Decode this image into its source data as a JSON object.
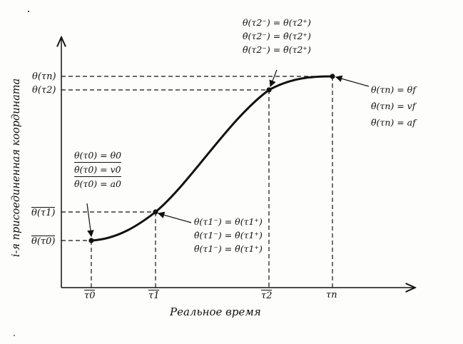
{
  "axes": {
    "x_title": "Реальное время",
    "y_title": "i-я присоединенная координата"
  },
  "x_ticks": [
    "τ0",
    "τ1",
    "τ2",
    "τn"
  ],
  "y_ticks": [
    "θ(τ0)",
    "θ(τ1)",
    "θ(τ2)",
    "θ(τn)"
  ],
  "annotations": {
    "start": [
      "θ(τ0) = θ0",
      "θ̇(τ0) = v0",
      "θ̈(τ0) = a0"
    ],
    "knot1": [
      "θ(τ1⁻) = θ(τ1⁺)",
      "θ̇(τ1⁻) = θ̇(τ1⁺)",
      "θ̈(τ1⁻) = θ̈(τ1⁺)"
    ],
    "knot2": [
      "θ(τ2⁻) = θ(τ2⁺)",
      "θ̇(τ2⁻) = θ̇(τ2⁺)",
      "θ̈(τ2⁻) = θ̈(τ2⁺)"
    ],
    "end": [
      "θ(τn) = θf",
      "θ̇(τn) = vf",
      "θ̈(τn) = af"
    ]
  },
  "colors": {
    "ink": "#111111",
    "paper": "#fdfdfb"
  }
}
